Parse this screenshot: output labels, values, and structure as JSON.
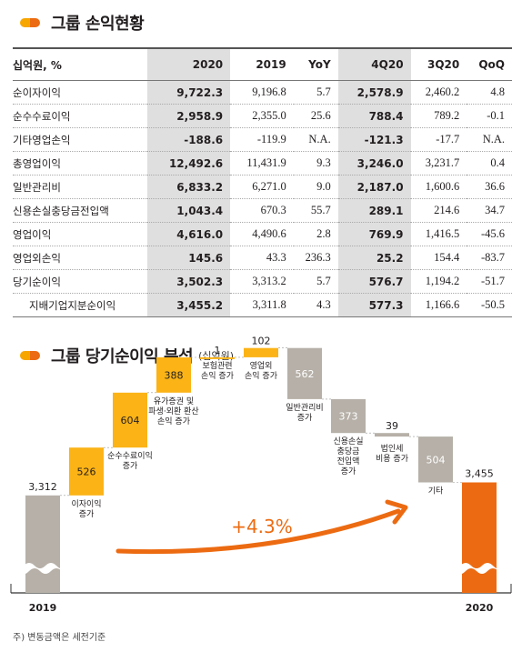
{
  "section1": {
    "title": "그룹 손익현황"
  },
  "table": {
    "headers": [
      "십억원, %",
      "2020",
      "2019",
      "YoY",
      "4Q20",
      "3Q20",
      "QoQ"
    ],
    "rows": [
      {
        "label": "순이자이익",
        "v": [
          "9,722.3",
          "9,196.8",
          "5.7",
          "2,578.9",
          "2,460.2",
          "4.8"
        ]
      },
      {
        "label": "순수수료이익",
        "v": [
          "2,958.9",
          "2,355.0",
          "25.6",
          "788.4",
          "789.2",
          "-0.1"
        ]
      },
      {
        "label": "기타영업손익",
        "v": [
          "-188.6",
          "-119.9",
          "N.A.",
          "-121.3",
          "-17.7",
          "N.A."
        ]
      },
      {
        "label": "총영업이익",
        "v": [
          "12,492.6",
          "11,431.9",
          "9.3",
          "3,246.0",
          "3,231.7",
          "0.4"
        ]
      },
      {
        "label": "일반관리비",
        "v": [
          "6,833.2",
          "6,271.0",
          "9.0",
          "2,187.0",
          "1,600.6",
          "36.6"
        ]
      },
      {
        "label": "신용손실충당금전입액",
        "v": [
          "1,043.4",
          "670.3",
          "55.7",
          "289.1",
          "214.6",
          "34.7"
        ]
      },
      {
        "label": "영업이익",
        "v": [
          "4,616.0",
          "4,490.6",
          "2.8",
          "769.9",
          "1,416.5",
          "-45.6"
        ]
      },
      {
        "label": "영업외손익",
        "v": [
          "145.6",
          "43.3",
          "236.3",
          "25.2",
          "154.4",
          "-83.7"
        ]
      },
      {
        "label": "당기순이익",
        "v": [
          "3,502.3",
          "3,313.2",
          "5.7",
          "576.7",
          "1,194.2",
          "-51.7"
        ]
      },
      {
        "label": "지배기업지분순이익",
        "v": [
          "3,455.2",
          "3,311.8",
          "4.3",
          "577.3",
          "1,166.6",
          "-50.5"
        ]
      }
    ]
  },
  "section2": {
    "title": "그룹 당기순이익 분석",
    "unit": "(십억원)"
  },
  "chart_data": {
    "type": "bar",
    "subtype": "waterfall",
    "steps": [
      {
        "label": "2019",
        "value": 3312,
        "display": "3,312",
        "kind": "total"
      },
      {
        "label": "이자이익 증가",
        "value": 526,
        "display": "526",
        "kind": "up"
      },
      {
        "label": "순수수료이익 증가",
        "value": 604,
        "display": "604",
        "kind": "up"
      },
      {
        "label": "유가증권 및 파생·외환 환산 손익 증가",
        "value": 388,
        "display": "388",
        "kind": "up"
      },
      {
        "label": "보험관련 손익 증가",
        "value": 1,
        "display": "1",
        "kind": "up"
      },
      {
        "label": "영업외 손익 증가",
        "value": 102,
        "display": "102",
        "kind": "up"
      },
      {
        "label": "일반관리비 증가",
        "value": -562,
        "display": "562",
        "kind": "down"
      },
      {
        "label": "신용손실 충당금 전입액 증가",
        "value": -373,
        "display": "373",
        "kind": "down"
      },
      {
        "label": "법인세 비용 증가",
        "value": -39,
        "display": "39",
        "kind": "down"
      },
      {
        "label": "기타",
        "value": -504,
        "display": "504",
        "kind": "down"
      },
      {
        "label": "2020",
        "value": 3455,
        "display": "3,455",
        "kind": "total"
      }
    ],
    "annotation": "+4.3%",
    "colors": {
      "up": "#fbb316",
      "down": "#b6b0a8",
      "total_2019": "#b6b0a8",
      "total_2020": "#ec6b12",
      "arrow": "#ec6b12"
    }
  },
  "footnote": "주) 변동금액은 세전기준"
}
